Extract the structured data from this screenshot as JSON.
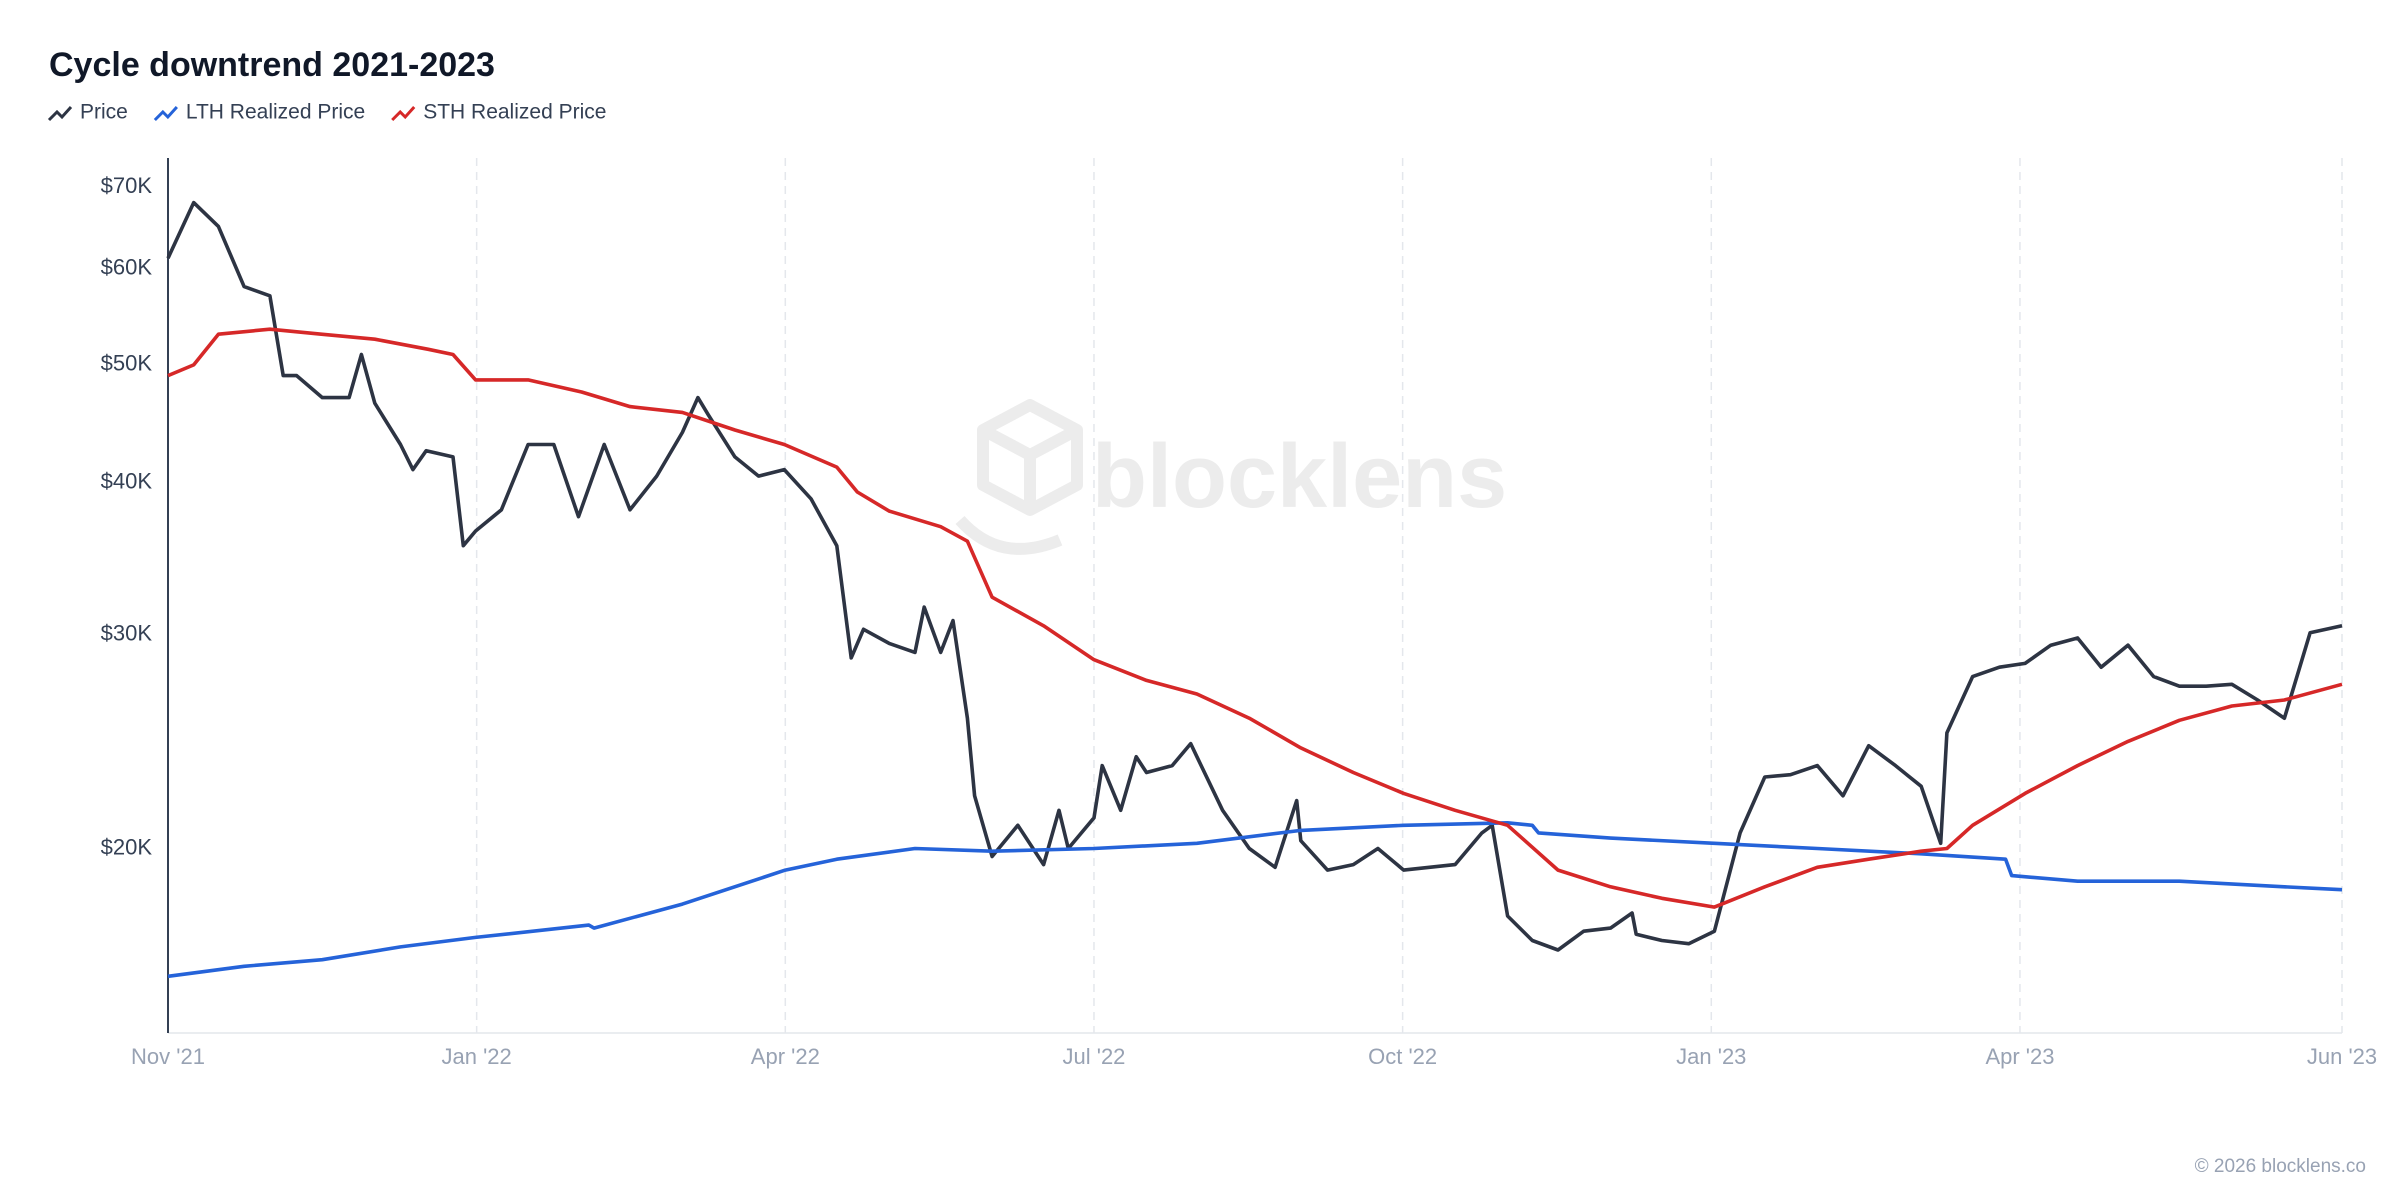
{
  "chart_data": {
    "type": "line",
    "title": "Cycle downtrend 2021-2023",
    "log_scale": true,
    "x_grid": true,
    "y_grid": false,
    "watermark": "blocklens",
    "footer": "© 2026 blocklens.co",
    "xlim": [
      0,
      21.13
    ],
    "xticks": [
      {
        "value": 0,
        "label": "Nov '21"
      },
      {
        "value": 3,
        "label": "Jan '22"
      },
      {
        "value": 6,
        "label": "Apr '22"
      },
      {
        "value": 9,
        "label": "Jul '22"
      },
      {
        "value": 12,
        "label": "Oct '22"
      },
      {
        "value": 15,
        "label": "Jan '23"
      },
      {
        "value": 18,
        "label": "Apr '23"
      },
      {
        "value": 21.13,
        "label": "Jun '23"
      }
    ],
    "ylim": [
      14100,
      74000
    ],
    "yticks": [
      {
        "value": 20000,
        "label": "$20K"
      },
      {
        "value": 30000,
        "label": "$30K"
      },
      {
        "value": 40000,
        "label": "$40K"
      },
      {
        "value": 50000,
        "label": "$50K"
      },
      {
        "value": 60000,
        "label": "$60K"
      },
      {
        "value": 70000,
        "label": "$70K"
      }
    ],
    "series": [
      {
        "name": "Price",
        "color": "#2d3443",
        "x": [
          0,
          0.25,
          0.49,
          0.74,
          0.99,
          1.12,
          1.25,
          1.5,
          1.76,
          1.88,
          2.01,
          2.26,
          2.38,
          2.51,
          2.77,
          2.87,
          2.99,
          3.24,
          3.5,
          3.75,
          3.99,
          4.24,
          4.49,
          4.75,
          5.0,
          5.15,
          5.25,
          5.51,
          5.74,
          5.99,
          6.25,
          6.5,
          6.64,
          6.76,
          7.01,
          7.26,
          7.35,
          7.51,
          7.63,
          7.77,
          7.84,
          8.01,
          8.26,
          8.51,
          8.66,
          8.75,
          9.0,
          9.08,
          9.26,
          9.41,
          9.51,
          9.76,
          9.94,
          10.0,
          10.25,
          10.51,
          10.76,
          10.97,
          11.01,
          11.27,
          11.52,
          11.76,
          12.01,
          12.26,
          12.51,
          12.77,
          12.87,
          13.02,
          13.26,
          13.51,
          13.76,
          14.02,
          14.23,
          14.27,
          14.52,
          14.78,
          15.03,
          15.28,
          15.52,
          15.77,
          16.03,
          16.28,
          16.53,
          16.79,
          17.04,
          17.23,
          17.29,
          17.54,
          17.8,
          18.05,
          18.3,
          18.56,
          18.79,
          19.05,
          19.3,
          19.55,
          19.81,
          20.06,
          20.31,
          20.57,
          20.82,
          21.13
        ],
        "values": [
          61200,
          68000,
          65000,
          58000,
          57000,
          49000,
          49000,
          47000,
          47000,
          51000,
          46500,
          43000,
          41000,
          42500,
          42000,
          35500,
          36500,
          38000,
          43000,
          43000,
          37500,
          43000,
          38000,
          40500,
          44000,
          47000,
          45500,
          42000,
          40500,
          41000,
          38800,
          35500,
          28700,
          30300,
          29500,
          29000,
          31600,
          29000,
          30800,
          25600,
          22100,
          19700,
          20900,
          19400,
          21500,
          20000,
          21200,
          23400,
          21500,
          23800,
          23100,
          23400,
          24400,
          23800,
          21500,
          20000,
          19300,
          21900,
          20300,
          19200,
          19400,
          20000,
          19200,
          19300,
          19400,
          20600,
          20900,
          17600,
          16800,
          16500,
          17100,
          17200,
          17700,
          17000,
          16800,
          16700,
          17100,
          20600,
          22900,
          23000,
          23400,
          22100,
          24300,
          23400,
          22500,
          20200,
          24900,
          27700,
          28200,
          28400,
          29400,
          29800,
          28200,
          29400,
          27700,
          27200,
          27200,
          27300,
          26500,
          25600,
          30100,
          30500
        ]
      },
      {
        "name": "LTH Realized Price",
        "color": "#2563d9",
        "x": [
          0,
          0.74,
          1.5,
          2.26,
          2.99,
          4.09,
          4.14,
          5.0,
          6.0,
          6.5,
          7.26,
          8.01,
          9.0,
          10.0,
          11.01,
          12.01,
          13.02,
          13.26,
          13.32,
          14.02,
          15.03,
          16.03,
          17.04,
          17.86,
          17.92,
          18.56,
          19.55,
          20.57,
          21.13
        ],
        "values": [
          15700,
          16000,
          16200,
          16600,
          16900,
          17300,
          17200,
          18000,
          19200,
          19600,
          20000,
          19900,
          20000,
          20200,
          20700,
          20900,
          21000,
          20900,
          20600,
          20400,
          20200,
          20000,
          19800,
          19600,
          19000,
          18800,
          18800,
          18600,
          18500
        ]
      },
      {
        "name": "STH Realized Price",
        "color": "#d62828",
        "x": [
          0,
          0.25,
          0.49,
          0.99,
          1.49,
          2.01,
          2.53,
          2.77,
          2.99,
          3.5,
          4.02,
          4.49,
          5.0,
          5.51,
          5.99,
          6.5,
          6.7,
          7.01,
          7.51,
          7.77,
          8.01,
          8.51,
          9.0,
          9.51,
          10.0,
          10.51,
          11.01,
          11.52,
          12.01,
          12.51,
          13.02,
          13.51,
          14.02,
          14.52,
          15.03,
          15.52,
          16.03,
          16.53,
          17.04,
          17.29,
          17.54,
          18.05,
          18.56,
          19.05,
          19.55,
          20.06,
          20.57,
          21.13
        ],
        "values": [
          49000,
          50000,
          53000,
          53500,
          53000,
          52500,
          51500,
          51000,
          48600,
          48600,
          47500,
          46200,
          45700,
          44200,
          43000,
          41200,
          39300,
          37900,
          36800,
          35800,
          32200,
          30500,
          28600,
          27500,
          26800,
          25600,
          24200,
          23100,
          22200,
          21500,
          20900,
          19200,
          18600,
          18200,
          17900,
          18600,
          19300,
          19600,
          19900,
          20000,
          20900,
          22200,
          23400,
          24500,
          25500,
          26200,
          26500,
          27300
        ]
      }
    ]
  }
}
